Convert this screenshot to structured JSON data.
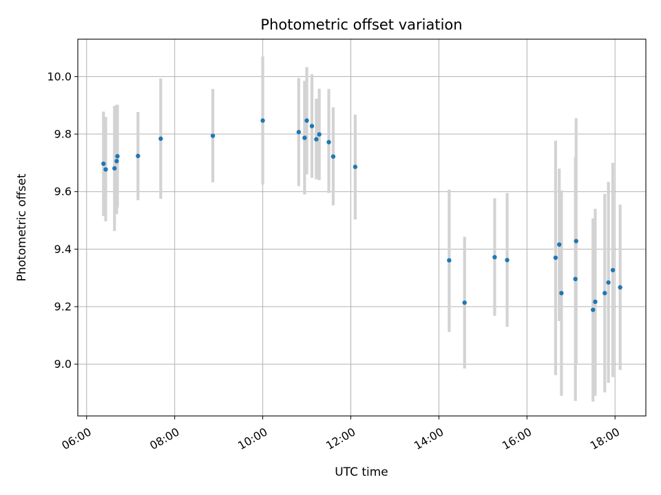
{
  "chart_data": {
    "type": "scatter",
    "title": "Photometric offset variation",
    "xlabel": "UTC time",
    "ylabel": "Photometric offset",
    "x_tick_labels": [
      "06:00",
      "08:00",
      "10:00",
      "12:00",
      "14:00",
      "16:00",
      "18:00"
    ],
    "y_tick_labels": [
      "9.0",
      "9.2",
      "9.4",
      "9.6",
      "9.8",
      "10.0"
    ],
    "xlim_hours": [
      5.8,
      18.7
    ],
    "ylim": [
      8.82,
      10.13
    ],
    "grid": true,
    "error_bar_color": "#d3d3d3",
    "point_color": "#1f77b4",
    "points": [
      {
        "time": "06:23",
        "y": 9.697,
        "lo": 9.515,
        "hi": 9.878
      },
      {
        "time": "06:26",
        "y": 9.677,
        "lo": 9.497,
        "hi": 9.86
      },
      {
        "time": "06:38",
        "y": 9.681,
        "lo": 9.463,
        "hi": 9.898
      },
      {
        "time": "06:41",
        "y": 9.706,
        "lo": 9.522,
        "hi": 9.902
      },
      {
        "time": "06:42",
        "y": 9.723,
        "lo": 9.545,
        "hi": 9.902
      },
      {
        "time": "07:10",
        "y": 9.724,
        "lo": 9.57,
        "hi": 9.877
      },
      {
        "time": "07:41",
        "y": 9.784,
        "lo": 9.575,
        "hi": 9.993
      },
      {
        "time": "08:52",
        "y": 9.794,
        "lo": 9.632,
        "hi": 9.957
      },
      {
        "time": "10:00",
        "y": 9.847,
        "lo": 9.625,
        "hi": 10.07
      },
      {
        "time": "10:49",
        "y": 9.807,
        "lo": 9.619,
        "hi": 9.995
      },
      {
        "time": "10:57",
        "y": 9.787,
        "lo": 9.59,
        "hi": 9.985
      },
      {
        "time": "11:00",
        "y": 9.847,
        "lo": 9.66,
        "hi": 10.033
      },
      {
        "time": "11:07",
        "y": 9.828,
        "lo": 9.648,
        "hi": 10.008
      },
      {
        "time": "11:13",
        "y": 9.782,
        "lo": 9.643,
        "hi": 9.923
      },
      {
        "time": "11:17",
        "y": 9.799,
        "lo": 9.64,
        "hi": 9.958
      },
      {
        "time": "11:30",
        "y": 9.772,
        "lo": 9.595,
        "hi": 9.957
      },
      {
        "time": "11:36",
        "y": 9.722,
        "lo": 9.552,
        "hi": 9.893
      },
      {
        "time": "12:06",
        "y": 9.686,
        "lo": 9.503,
        "hi": 9.868
      },
      {
        "time": "14:14",
        "y": 9.361,
        "lo": 9.112,
        "hi": 9.607
      },
      {
        "time": "14:35",
        "y": 9.214,
        "lo": 8.985,
        "hi": 9.443
      },
      {
        "time": "15:16",
        "y": 9.372,
        "lo": 9.168,
        "hi": 9.577
      },
      {
        "time": "15:33",
        "y": 9.362,
        "lo": 9.13,
        "hi": 9.595
      },
      {
        "time": "16:39",
        "y": 9.37,
        "lo": 8.962,
        "hi": 9.777
      },
      {
        "time": "16:44",
        "y": 9.416,
        "lo": 9.15,
        "hi": 9.68
      },
      {
        "time": "16:47",
        "y": 9.247,
        "lo": 8.89,
        "hi": 9.604
      },
      {
        "time": "17:06",
        "y": 9.296,
        "lo": 8.872,
        "hi": 9.72
      },
      {
        "time": "17:07",
        "y": 9.428,
        "lo": 9.0,
        "hi": 9.855
      },
      {
        "time": "17:30",
        "y": 9.189,
        "lo": 8.87,
        "hi": 9.507
      },
      {
        "time": "17:33",
        "y": 9.217,
        "lo": 8.89,
        "hi": 9.54
      },
      {
        "time": "17:46",
        "y": 9.247,
        "lo": 8.902,
        "hi": 9.592
      },
      {
        "time": "17:51",
        "y": 9.284,
        "lo": 8.935,
        "hi": 9.634
      },
      {
        "time": "17:57",
        "y": 9.327,
        "lo": 8.955,
        "hi": 9.7
      },
      {
        "time": "18:07",
        "y": 9.267,
        "lo": 8.98,
        "hi": 9.555
      }
    ]
  }
}
